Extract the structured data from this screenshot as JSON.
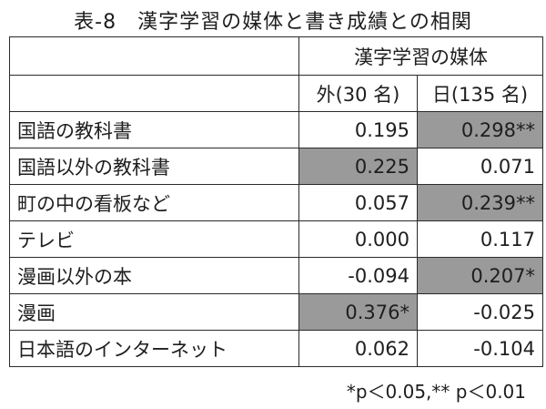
{
  "title": "表-8　漢字学習の媒体と書き成績との相関",
  "table": {
    "group_header": "漢字学習の媒体",
    "columns": [
      "外(30 名)",
      "日(135 名)"
    ],
    "rows": [
      {
        "label": "国語の教科書",
        "v1": "0.195",
        "v2": "0.298**",
        "hl1": false,
        "hl2": true
      },
      {
        "label": "国語以外の教科書",
        "v1": "0.225",
        "v2": "0.071",
        "hl1": true,
        "hl2": false
      },
      {
        "label": "町の中の看板など",
        "v1": "0.057",
        "v2": "0.239**",
        "hl1": false,
        "hl2": true
      },
      {
        "label": "テレビ",
        "v1": "0.000",
        "v2": "0.117",
        "hl1": false,
        "hl2": false
      },
      {
        "label": "漫画以外の本",
        "v1": "-0.094",
        "v2": "0.207*",
        "hl1": false,
        "hl2": true
      },
      {
        "label": "漫画",
        "v1": "0.376*",
        "v2": "-0.025",
        "hl1": true,
        "hl2": false
      },
      {
        "label": "日本語のインターネット",
        "v1": "0.062",
        "v2": "-0.104",
        "hl1": false,
        "hl2": false
      }
    ]
  },
  "note": "*p＜0.05,** p＜0.01",
  "colors": {
    "highlight": "#9a9a9a",
    "border": "#2a2a2a"
  }
}
